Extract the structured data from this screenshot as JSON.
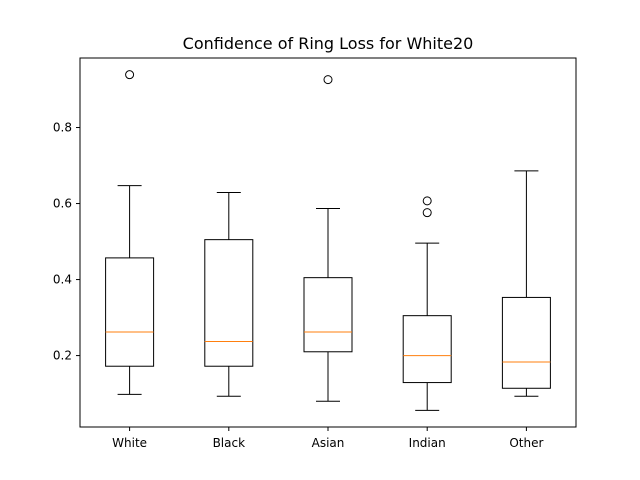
{
  "chart_data": {
    "type": "box",
    "title": "Confidence of Ring Loss for White20",
    "xlabel": "",
    "ylabel": "",
    "categories": [
      "White",
      "Black",
      "Asian",
      "Indian",
      "Other"
    ],
    "boxes": [
      {
        "name": "White",
        "whisker_low": 0.098,
        "q1": 0.172,
        "median": 0.262,
        "q3": 0.457,
        "whisker_high": 0.647,
        "outliers": [
          0.939
        ]
      },
      {
        "name": "Black",
        "whisker_low": 0.093,
        "q1": 0.172,
        "median": 0.237,
        "q3": 0.505,
        "whisker_high": 0.629,
        "outliers": []
      },
      {
        "name": "Asian",
        "whisker_low": 0.08,
        "q1": 0.21,
        "median": 0.262,
        "q3": 0.405,
        "whisker_high": 0.587,
        "outliers": [
          0.926
        ]
      },
      {
        "name": "Indian",
        "whisker_low": 0.056,
        "q1": 0.129,
        "median": 0.2,
        "q3": 0.305,
        "whisker_high": 0.496,
        "outliers": [
          0.607,
          0.576
        ]
      },
      {
        "name": "Other",
        "whisker_low": 0.093,
        "q1": 0.114,
        "median": 0.183,
        "q3": 0.353,
        "whisker_high": 0.686,
        "outliers": []
      }
    ],
    "yticks": [
      0.2,
      0.4,
      0.6,
      0.8
    ],
    "ytick_labels": [
      "0.2",
      "0.4",
      "0.6",
      "0.8"
    ],
    "ylim": [
      0.0121,
      0.9829
    ],
    "grid": false,
    "colors": {
      "box": "#000000",
      "median": "#ff7f0e",
      "background": "#ffffff"
    }
  }
}
